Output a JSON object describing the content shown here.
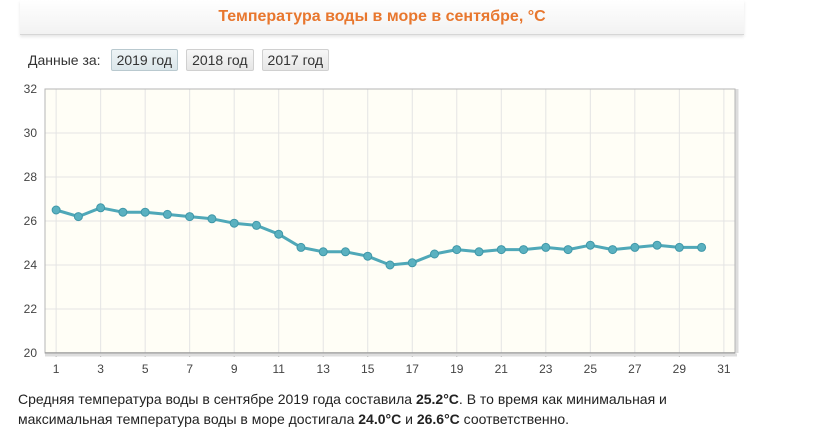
{
  "header": {
    "title": "Температура воды в море в сентябре, °C"
  },
  "year_selector": {
    "label": "Данные за:",
    "years": [
      "2019 год",
      "2018 год",
      "2017 год"
    ],
    "active": 0
  },
  "chart_data": {
    "type": "line",
    "title": "Температура воды в море в сентябре, °C",
    "xlabel": "",
    "ylabel": "",
    "x": [
      1,
      2,
      3,
      4,
      5,
      6,
      7,
      8,
      9,
      10,
      11,
      12,
      13,
      14,
      15,
      16,
      17,
      18,
      19,
      20,
      21,
      22,
      23,
      24,
      25,
      26,
      27,
      28,
      29,
      30
    ],
    "series": [
      {
        "values": [
          26.5,
          26.2,
          26.6,
          26.4,
          26.4,
          26.3,
          26.2,
          26.1,
          25.9,
          25.8,
          25.4,
          24.8,
          24.6,
          24.6,
          24.4,
          24.0,
          24.1,
          24.5,
          24.7,
          24.6,
          24.7,
          24.7,
          24.8,
          24.7,
          24.9,
          24.7,
          24.8,
          24.9,
          24.8,
          24.8
        ]
      }
    ],
    "xlim": [
      0.5,
      31.5
    ],
    "ylim": [
      20,
      32
    ],
    "x_ticks": [
      "1",
      "3",
      "5",
      "7",
      "9",
      "11",
      "13",
      "15",
      "17",
      "19",
      "21",
      "23",
      "25",
      "27",
      "29",
      "31"
    ],
    "y_ticks": [
      "20",
      "22",
      "24",
      "26",
      "28",
      "30",
      "32"
    ],
    "grid": true,
    "colors": {
      "line": "#4fa8b8",
      "marker": "#5ab1c0",
      "plot_bg": "#fffef6",
      "grid": "#e4e4e4"
    }
  },
  "summary": {
    "part1": "Средняя температура воды в сентябре 2019 года составила ",
    "avg": "25.2°C",
    "part2": ". В то время как минимальная и максимальная температура воды в море достигала ",
    "min": "24.0°C",
    "part3": " и ",
    "max": "26.6°C",
    "part4": " соответственно."
  }
}
